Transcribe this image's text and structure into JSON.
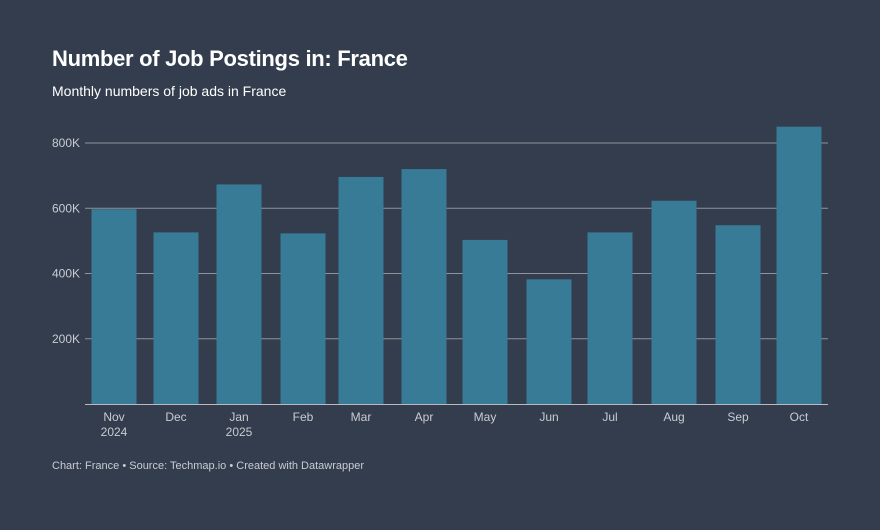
{
  "header": {
    "title": "Number of Job Postings in: France",
    "subtitle": "Monthly numbers of job ads in France"
  },
  "footer": {
    "chart_label": "Chart: France",
    "separator": "•",
    "source": "Source: Techmap.io",
    "credit": "Created with Datawrapper"
  },
  "colors": {
    "background": "#333d4d",
    "bar": "#377b97",
    "gridline": "#8e949c",
    "axis": "#b8bcc2"
  },
  "chart_data": {
    "type": "bar",
    "title": "Number of Job Postings in: France",
    "subtitle": "Monthly numbers of job ads in France",
    "categories": [
      {
        "label": "Nov",
        "sublabel": "2024"
      },
      {
        "label": "Dec",
        "sublabel": ""
      },
      {
        "label": "Jan",
        "sublabel": "2025"
      },
      {
        "label": "Feb",
        "sublabel": ""
      },
      {
        "label": "Mar",
        "sublabel": ""
      },
      {
        "label": "Apr",
        "sublabel": ""
      },
      {
        "label": "May",
        "sublabel": ""
      },
      {
        "label": "Jun",
        "sublabel": ""
      },
      {
        "label": "Jul",
        "sublabel": ""
      },
      {
        "label": "Aug",
        "sublabel": ""
      },
      {
        "label": "Sep",
        "sublabel": ""
      },
      {
        "label": "Oct",
        "sublabel": ""
      }
    ],
    "values": [
      597000,
      526000,
      673000,
      523000,
      696000,
      720000,
      503000,
      382000,
      526000,
      623000,
      548000,
      850000
    ],
    "xlabel": "",
    "ylabel": "",
    "ylim": [
      0,
      800000
    ],
    "yticks": [
      {
        "value": 200000,
        "label": "200K"
      },
      {
        "value": 400000,
        "label": "400K"
      },
      {
        "value": 600000,
        "label": "600K"
      },
      {
        "value": 800000,
        "label": "800K"
      }
    ],
    "grid": true
  }
}
